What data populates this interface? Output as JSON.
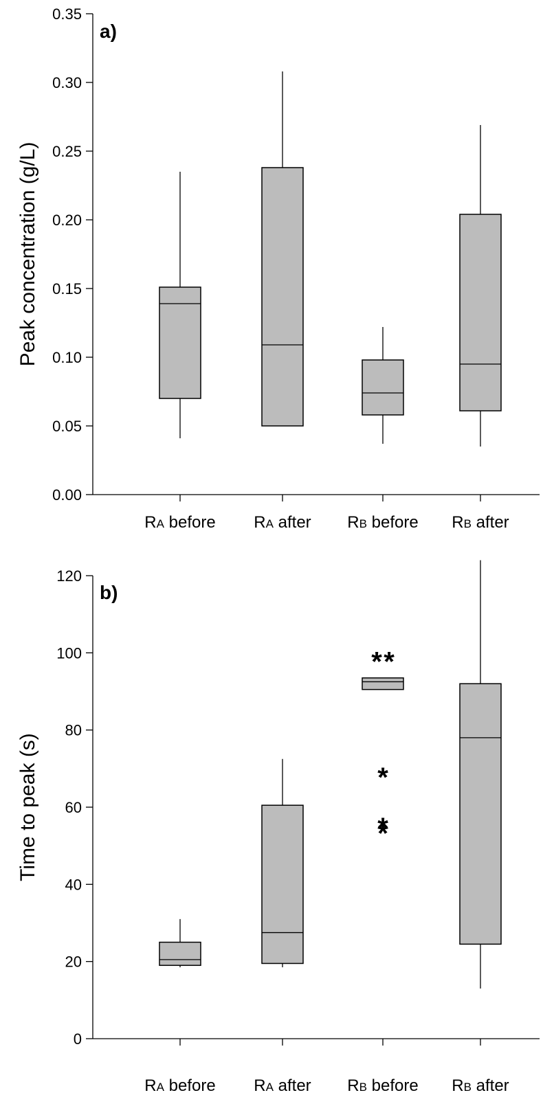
{
  "chart_data": [
    {
      "type": "box",
      "panel_label": "a)",
      "ylabel": "Peak concentration (g/L)",
      "ylim": [
        0,
        0.35
      ],
      "yticks": [
        0.0,
        0.05,
        0.1,
        0.15,
        0.2,
        0.25,
        0.3,
        0.35
      ],
      "ytick_labels": [
        "0.00",
        "0.05",
        "0.10",
        "0.15",
        "0.20",
        "0.25",
        "0.30",
        "0.35"
      ],
      "categories": [
        {
          "main": "R",
          "sub": "A",
          "rest": " before"
        },
        {
          "main": "R",
          "sub": "A",
          "rest": " after"
        },
        {
          "main": "R",
          "sub": "B",
          "rest": " before"
        },
        {
          "main": "R",
          "sub": "B",
          "rest": " after"
        }
      ],
      "boxes": [
        {
          "whisker_low": 0.041,
          "q1": 0.07,
          "median": 0.139,
          "q3": 0.151,
          "whisker_high": 0.235,
          "outliers": []
        },
        {
          "whisker_low": 0.05,
          "q1": 0.05,
          "median": 0.109,
          "q3": 0.238,
          "whisker_high": 0.308,
          "outliers": []
        },
        {
          "whisker_low": 0.037,
          "q1": 0.058,
          "median": 0.074,
          "q3": 0.098,
          "whisker_high": 0.122,
          "outliers": []
        },
        {
          "whisker_low": 0.035,
          "q1": 0.061,
          "median": 0.095,
          "q3": 0.204,
          "whisker_high": 0.269,
          "outliers": []
        }
      ]
    },
    {
      "type": "box",
      "panel_label": "b)",
      "ylabel": "Time to peak (s)",
      "ylim": [
        0,
        120
      ],
      "yticks": [
        0,
        20,
        40,
        60,
        80,
        100,
        120
      ],
      "ytick_labels": [
        "0",
        "20",
        "40",
        "60",
        "80",
        "100",
        "120"
      ],
      "categories": [
        {
          "main": "R",
          "sub": "A",
          "rest": " before"
        },
        {
          "main": "R",
          "sub": "A",
          "rest": " after"
        },
        {
          "main": "R",
          "sub": "B",
          "rest": " before"
        },
        {
          "main": "R",
          "sub": "B",
          "rest": " after"
        }
      ],
      "boxes": [
        {
          "whisker_low": 18.5,
          "q1": 19.0,
          "median": 20.5,
          "q3": 25.0,
          "whisker_high": 31.0,
          "outliers": []
        },
        {
          "whisker_low": 18.5,
          "q1": 19.5,
          "median": 27.5,
          "q3": 60.5,
          "whisker_high": 72.5,
          "outliers": []
        },
        {
          "whisker_low": 90.5,
          "q1": 90.5,
          "median": 92.5,
          "q3": 93.5,
          "whisker_high": 93.5,
          "outliers": [
            100,
            100,
            70,
            57,
            55.5
          ]
        },
        {
          "whisker_low": 13.0,
          "q1": 24.5,
          "median": 78.0,
          "q3": 92.0,
          "whisker_high": 124.0,
          "outliers": []
        }
      ]
    }
  ]
}
